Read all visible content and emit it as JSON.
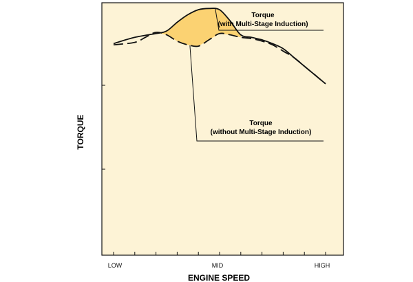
{
  "colors": {
    "plot_background": "#fdf3d6",
    "gain_fill": "#fbd272",
    "line": "#111111"
  },
  "chart_data": {
    "type": "line",
    "xlabel": "ENGINE SPEED",
    "ylabel": "TORQUE",
    "x_ticks": [
      "LOW",
      "MID",
      "HIGH"
    ],
    "xlim": [
      0,
      100
    ],
    "ylim": [
      0,
      100
    ],
    "series": [
      {
        "name": "Torque (with Multi-Stage Induction)",
        "style": "solid",
        "x": [
          0,
          10,
          20,
          25,
          30,
          35,
          40,
          45,
          50,
          55,
          60,
          65,
          70,
          75,
          80,
          85,
          90,
          95,
          100
        ],
        "y": [
          84,
          86.5,
          88,
          89,
          92.5,
          95.5,
          97.5,
          98,
          97.5,
          93,
          87.5,
          86.5,
          85.5,
          84,
          82,
          78.5,
          75,
          71.5,
          68
        ]
      },
      {
        "name": "Torque (without Multi-Stage Induction)",
        "style": "dashed",
        "x": [
          0,
          10,
          15,
          20,
          25,
          30,
          35,
          40,
          45,
          50,
          55,
          60,
          65,
          70,
          75,
          80,
          85,
          90,
          95,
          100
        ],
        "y": [
          83.5,
          84.5,
          86.5,
          88.5,
          87.5,
          85,
          83.5,
          83,
          85.5,
          88,
          87.5,
          86.5,
          86,
          85,
          83.5,
          81,
          78.5,
          75,
          71.5,
          68
        ]
      }
    ],
    "shaded_region": {
      "between": "series",
      "x_range": [
        20,
        60
      ]
    },
    "annotations": [
      {
        "line1": "Torque",
        "line2": "(with Multi-Stage Induction)",
        "points_to": {
          "x": 48,
          "y": 97.8
        }
      },
      {
        "line1": "Torque",
        "line2": "(without Multi-Stage Induction)",
        "points_to": {
          "x": 36,
          "y": 83.3
        }
      }
    ],
    "grid": false,
    "legend": "none"
  }
}
